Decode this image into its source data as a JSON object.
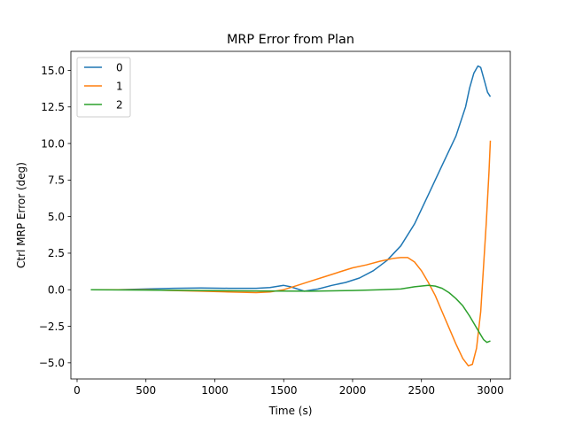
{
  "chart_data": {
    "type": "line",
    "title": "MRP Error from Plan",
    "xlabel": "Time (s)",
    "ylabel": "Ctrl MRP Error (deg)",
    "xlim": [
      -45,
      3145
    ],
    "ylim": [
      -6.1,
      16.3
    ],
    "xticks": [
      0,
      500,
      1000,
      1500,
      2000,
      2500,
      3000
    ],
    "xtick_labels": [
      "0",
      "500",
      "1000",
      "1500",
      "2000",
      "2500",
      "3000"
    ],
    "yticks": [
      -5.0,
      -2.5,
      0.0,
      2.5,
      5.0,
      7.5,
      10.0,
      12.5,
      15.0
    ],
    "ytick_labels": [
      "−5.0",
      "−2.5",
      "0.0",
      "2.5",
      "5.0",
      "7.5",
      "10.0",
      "12.5",
      "15.0"
    ],
    "grid": false,
    "legend_position": "top-left",
    "series": [
      {
        "name": "0",
        "color": "#1f77b4",
        "x": [
          100,
          300,
          500,
          700,
          900,
          1100,
          1300,
          1400,
          1500,
          1550,
          1650,
          1750,
          1850,
          1950,
          2050,
          2150,
          2250,
          2350,
          2450,
          2550,
          2650,
          2750,
          2820,
          2850,
          2880,
          2910,
          2930,
          2960,
          2980,
          3000
        ],
        "y": [
          0.0,
          0.0,
          0.05,
          0.1,
          0.12,
          0.1,
          0.1,
          0.15,
          0.3,
          0.2,
          -0.1,
          0.05,
          0.3,
          0.5,
          0.8,
          1.3,
          2.0,
          3.0,
          4.5,
          6.5,
          8.5,
          10.5,
          12.5,
          13.8,
          14.8,
          15.3,
          15.2,
          14.2,
          13.5,
          13.2
        ]
      },
      {
        "name": "1",
        "color": "#ff7f0e",
        "x": [
          100,
          300,
          500,
          700,
          900,
          1100,
          1300,
          1400,
          1500,
          1600,
          1700,
          1800,
          1900,
          2000,
          2100,
          2200,
          2300,
          2350,
          2400,
          2450,
          2500,
          2550,
          2600,
          2650,
          2700,
          2750,
          2800,
          2840,
          2870,
          2900,
          2930,
          2950,
          2970,
          2990,
          3000
        ],
        "y": [
          0.0,
          0.0,
          0.0,
          -0.05,
          -0.1,
          -0.15,
          -0.2,
          -0.15,
          0.0,
          0.3,
          0.6,
          0.9,
          1.2,
          1.5,
          1.7,
          1.95,
          2.15,
          2.2,
          2.2,
          1.9,
          1.3,
          0.5,
          -0.4,
          -1.5,
          -2.6,
          -3.7,
          -4.7,
          -5.2,
          -5.1,
          -4.0,
          -1.5,
          1.5,
          4.5,
          8.0,
          10.2
        ]
      },
      {
        "name": "2",
        "color": "#2ca02c",
        "x": [
          100,
          500,
          900,
          1300,
          1700,
          2000,
          2200,
          2350,
          2450,
          2550,
          2600,
          2650,
          2700,
          2750,
          2800,
          2850,
          2900,
          2950,
          2975,
          3000
        ],
        "y": [
          0.0,
          -0.02,
          -0.05,
          -0.08,
          -0.1,
          -0.05,
          0.0,
          0.05,
          0.2,
          0.3,
          0.25,
          0.1,
          -0.2,
          -0.6,
          -1.1,
          -1.8,
          -2.6,
          -3.4,
          -3.6,
          -3.5
        ]
      }
    ]
  }
}
